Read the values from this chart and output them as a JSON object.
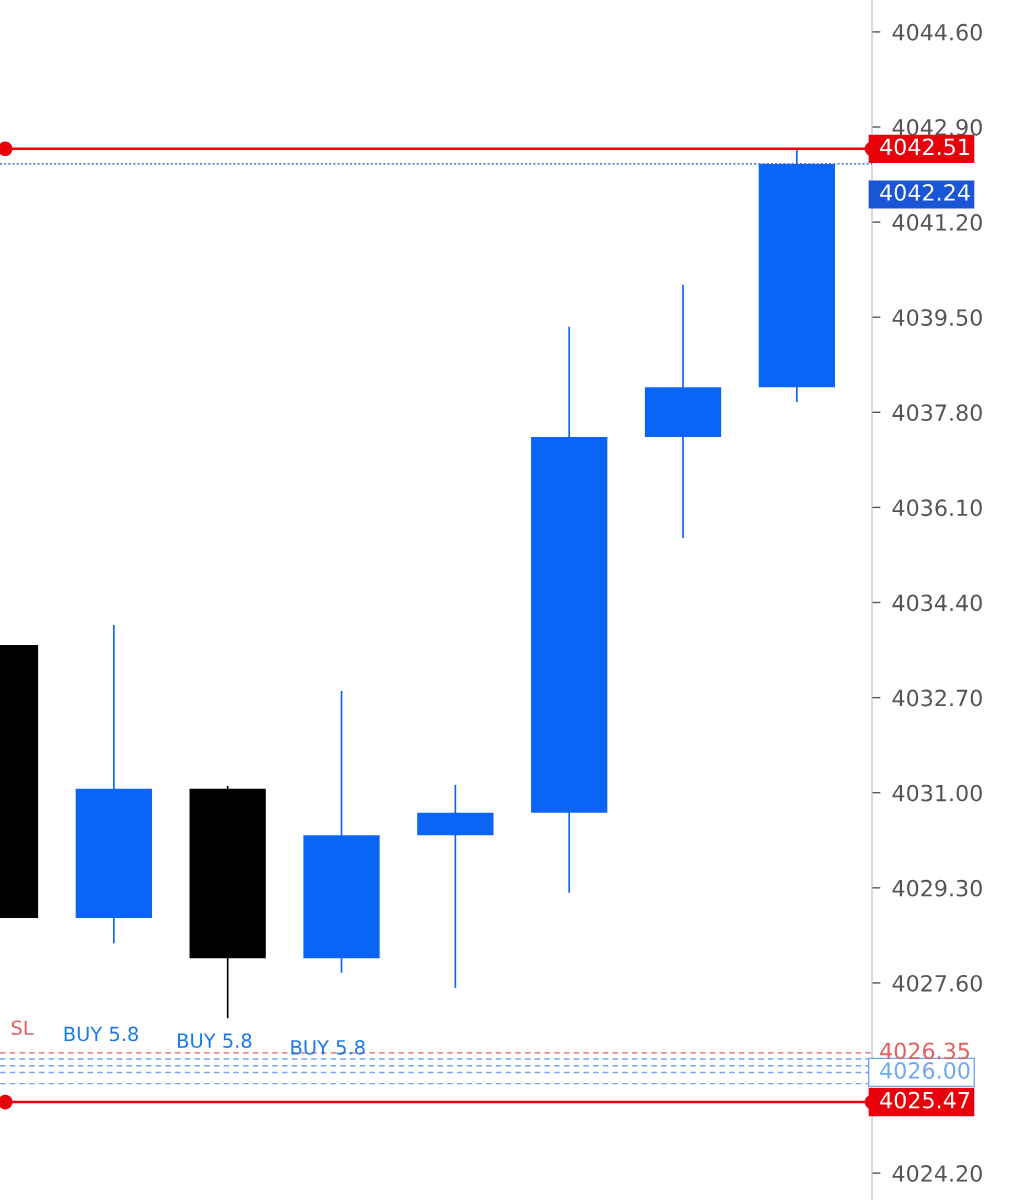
{
  "chart_data": {
    "type": "candlestick",
    "categories": [
      null,
      null,
      null,
      null,
      null,
      null,
      null,
      null
    ],
    "ohlc": [
      [
        4033.64,
        4033.64,
        4028.76,
        4028.76
      ],
      [
        4028.76,
        4034.0,
        4028.31,
        4031.07
      ],
      [
        4031.07,
        4031.12,
        4026.97,
        4028.04
      ],
      [
        4028.04,
        4032.82,
        4027.78,
        4030.24
      ],
      [
        4030.24,
        4031.14,
        4027.51,
        4030.64
      ],
      [
        4030.64,
        4039.33,
        4029.21,
        4037.36
      ],
      [
        4037.36,
        4040.08,
        4035.55,
        4038.25
      ],
      [
        4038.25,
        4042.49,
        4037.98,
        4042.24
      ]
    ],
    "colors": [
      "#000000",
      "#0a64f5",
      "#000000",
      "#0a64f5",
      "#0a64f5",
      "#0a64f5",
      "#0a64f5",
      "#0a64f5"
    ],
    "ylim": [
      4023.72,
      4045.17
    ],
    "yticks": [
      {
        "value": 4024.2,
        "label": "4024.20"
      },
      {
        "value": 4027.6,
        "label": "4027.60"
      },
      {
        "value": 4029.3,
        "label": "4029.30"
      },
      {
        "value": 4031.0,
        "label": "4031.00"
      },
      {
        "value": 4032.7,
        "label": "4032.70"
      },
      {
        "value": 4034.4,
        "label": "4034.40"
      },
      {
        "value": 4036.1,
        "label": "4036.10"
      },
      {
        "value": 4037.8,
        "label": "4037.80"
      },
      {
        "value": 4039.5,
        "label": "4039.50"
      },
      {
        "value": 4041.2,
        "label": "4041.20"
      },
      {
        "value": 4042.9,
        "label": "4042.90"
      },
      {
        "value": 4044.6,
        "label": "4044.60"
      }
    ],
    "tick_labels": "y",
    "grid": false,
    "ref_lines": [
      {
        "axis": "y",
        "value": 4042.24,
        "label": "4042.24",
        "color": "#1a55d6",
        "line_style": "dotted"
      },
      {
        "axis": "y",
        "value": 4042.51,
        "label": "4042.51",
        "color": "#e8000b",
        "line_style": "solid"
      },
      {
        "axis": "y",
        "value": 4025.8,
        "label": null,
        "color": "#6fa8ef",
        "line_style": "dashed"
      },
      {
        "axis": "y",
        "value": 4026.0,
        "label": "4026.00",
        "color": "#6fa8ef",
        "line_style": "dashed"
      },
      {
        "axis": "y",
        "value": 4026.12,
        "label": null,
        "color": "#6fa8ef",
        "line_style": "dashed"
      },
      {
        "axis": "y",
        "value": 4026.24,
        "label": null,
        "color": "#6fa8ef",
        "line_style": "dashed"
      },
      {
        "axis": "y",
        "value": 4026.35,
        "label": "4026.35",
        "color": "#e06060",
        "line_style": "dashed"
      },
      {
        "axis": "y",
        "value": 4025.47,
        "label": "4025.47",
        "color": "#e8000b",
        "line_style": "solid"
      }
    ],
    "annotations": [
      {
        "text": "SL",
        "y": 4026.35
      },
      {
        "text": "BUY 5.8",
        "y": 4026.24
      },
      {
        "text": "BUY 5.8",
        "y": 4026.12
      },
      {
        "text": "BUY 5.8",
        "y": 4026.0
      }
    ]
  }
}
